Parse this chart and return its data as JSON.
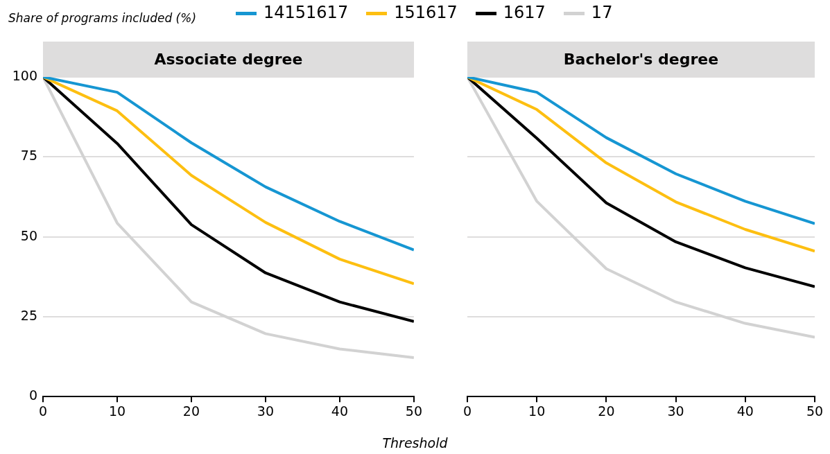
{
  "chart_data": [
    {
      "type": "line",
      "title": "Associate degree",
      "ylabel": "Share of programs included (%)",
      "xlabel": "Threshold",
      "x": [
        0,
        10,
        20,
        30,
        40,
        50
      ],
      "xlim": [
        0,
        50
      ],
      "xticks": [
        0,
        10,
        20,
        30,
        40,
        50
      ],
      "ylim": [
        0,
        100
      ],
      "yticks": [
        0,
        25,
        50,
        75,
        100
      ],
      "grid": "y",
      "legend": "top",
      "marker": "none",
      "line_style": "solid",
      "series": [
        {
          "name": "14151617",
          "color": "#1696d2",
          "values": [
            100,
            95.2,
            79.4,
            65.6,
            54.8,
            45.9
          ]
        },
        {
          "name": "151617",
          "color": "#fdbf11",
          "values": [
            100,
            89.4,
            69.2,
            54.5,
            43,
            35.3
          ]
        },
        {
          "name": "1617",
          "color": "#000000",
          "values": [
            100,
            79.2,
            53.8,
            38.7,
            29.6,
            23.5
          ]
        },
        {
          "name": "17",
          "color": "#d2d2d2",
          "values": [
            100,
            54.3,
            29.6,
            19.7,
            14.9,
            12.2
          ]
        }
      ]
    },
    {
      "type": "line",
      "title": "Bachelor's degree",
      "x": [
        0,
        10,
        20,
        30,
        40,
        50
      ],
      "xlim": [
        0,
        50
      ],
      "xticks": [
        0,
        10,
        20,
        30,
        40,
        50
      ],
      "ylim": [
        0,
        100
      ],
      "yticks": [
        0,
        25,
        50,
        75,
        100
      ],
      "grid": "y",
      "marker": "none",
      "line_style": "solid",
      "tick_labels": "x",
      "series": [
        {
          "name": "14151617",
          "color": "#1696d2",
          "values": [
            100,
            95.2,
            81,
            69.7,
            61.1,
            54.1
          ]
        },
        {
          "name": "151617",
          "color": "#fdbf11",
          "values": [
            100,
            89.8,
            73.1,
            60.9,
            52.3,
            45.5
          ]
        },
        {
          "name": "1617",
          "color": "#000000",
          "values": [
            100,
            80.8,
            60.6,
            48.4,
            40.3,
            34.4
          ]
        },
        {
          "name": "17",
          "color": "#d2d2d2",
          "values": [
            100,
            61.1,
            40,
            29.6,
            22.9,
            18.6
          ]
        }
      ]
    }
  ]
}
